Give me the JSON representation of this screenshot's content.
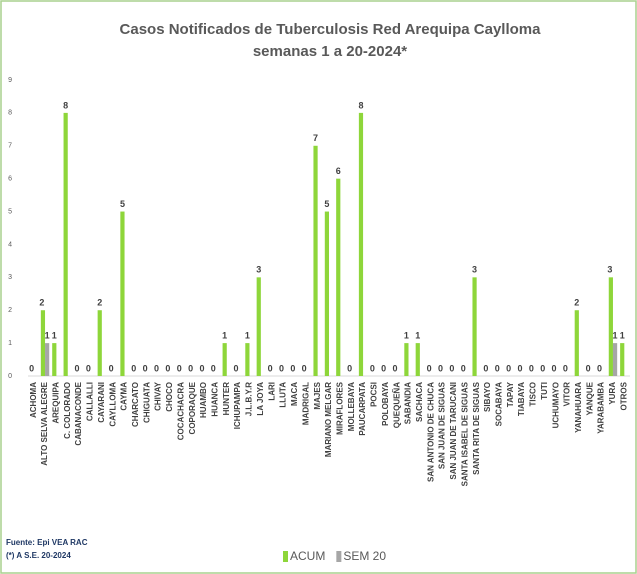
{
  "chart_data": {
    "type": "bar",
    "title": [
      "Casos Notificados de Tuberculosis Red Arequipa Caylloma",
      "semanas 1 a 20-2024*"
    ],
    "categories": [
      "ACHOMA",
      "ALTO SELVA ALEGRE",
      "AREQUIPA",
      "C. COLORADO",
      "CABANACONDE",
      "CALLALLI",
      "CAYARANI",
      "CAYLLOMA",
      "CAYMA",
      "CHARCATO",
      "CHIGUATA",
      "CHIVAY",
      "CHOCO",
      "COCACHACRA",
      "COPORAQUE",
      "HUAMBO",
      "HUANCA",
      "HUNTER",
      "ICHUPAMPA",
      "J.L.B.Y.R",
      "LA JOYA",
      "LARI",
      "LLUTA",
      "MACA",
      "MADRIGAL",
      "MAJES",
      "MARIANO MELGAR",
      "MIRAFLORES",
      "MOLLEBAYA",
      "PAUCARPATA",
      "POCSI",
      "POLOBAYA",
      "QUEQUEÑA",
      "SABANDIA",
      "SACHACA",
      "SAN ANTONIO DE CHUCA",
      "SAN JUAN DE SIGUAS",
      "SAN JUAN DE TARUCANI",
      "SANTA ISABEL DE SIGUAS",
      "SANTA RITA DE SIGUAS",
      "SIBAYO",
      "SOCABAYA",
      "TAPAY",
      "TIABAYA",
      "TISCO",
      "TUTI",
      "UCHUMAYO",
      "VITOR",
      "YANAHUARA",
      "YANQUE",
      "YARABAMBA",
      "YURA",
      "OTROS"
    ],
    "series": [
      {
        "name": "ACUM",
        "color": "#8ed63a",
        "values": [
          0,
          2,
          1,
          8,
          0,
          0,
          2,
          0,
          5,
          0,
          0,
          0,
          0,
          0,
          0,
          0,
          0,
          1,
          0,
          1,
          3,
          0,
          0,
          0,
          0,
          7,
          5,
          6,
          0,
          8,
          0,
          0,
          0,
          1,
          1,
          0,
          0,
          0,
          0,
          3,
          0,
          0,
          0,
          0,
          0,
          0,
          0,
          0,
          2,
          0,
          0,
          3,
          1
        ]
      },
      {
        "name": "SEM 20",
        "color": "#a6a6a6",
        "values": [
          0,
          1,
          0,
          0,
          0,
          0,
          0,
          0,
          0,
          0,
          0,
          0,
          0,
          0,
          0,
          0,
          0,
          0,
          0,
          0,
          0,
          0,
          0,
          0,
          0,
          0,
          0,
          0,
          0,
          0,
          0,
          0,
          0,
          0,
          0,
          0,
          0,
          0,
          0,
          0,
          0,
          0,
          0,
          0,
          0,
          0,
          0,
          0,
          0,
          0,
          0,
          1,
          0
        ]
      }
    ],
    "ylim": [
      0,
      9
    ],
    "yticks": [
      0,
      1,
      2,
      3,
      4,
      5,
      6,
      7,
      8,
      9
    ],
    "source": [
      "Fuente: Epi VEA RAC",
      "(*) A S.E. 20-2024"
    ],
    "legend": "bottom"
  }
}
